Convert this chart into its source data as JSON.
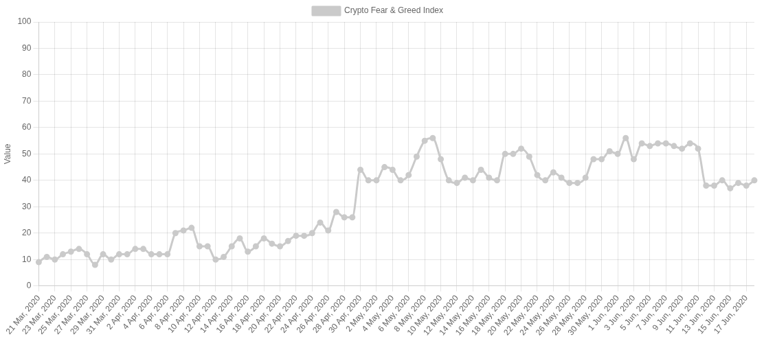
{
  "chart_data": {
    "type": "line",
    "ylabel": "Value",
    "categories": [
      "21 Mar, 2020",
      null,
      "23 Mar, 2020",
      null,
      "25 Mar, 2020",
      null,
      "27 Mar, 2020",
      null,
      "29 Mar, 2020",
      null,
      "31 Mar, 2020",
      null,
      "2 Apr, 2020",
      null,
      "4 Apr, 2020",
      null,
      "6 Apr, 2020",
      null,
      "8 Apr, 2020",
      null,
      "10 Apr, 2020",
      null,
      "12 Apr, 2020",
      null,
      "14 Apr, 2020",
      null,
      "16 Apr, 2020",
      null,
      "18 Apr, 2020",
      null,
      "20 Apr, 2020",
      null,
      "22 Apr, 2020",
      null,
      "24 Apr, 2020",
      null,
      "26 Apr, 2020",
      null,
      "28 Apr, 2020",
      null,
      "30 Apr, 2020",
      null,
      "2 May, 2020",
      null,
      "4 May, 2020",
      null,
      "6 May, 2020",
      null,
      "8 May, 2020",
      null,
      "10 May, 2020",
      null,
      "12 May, 2020",
      null,
      "14 May, 2020",
      null,
      "16 May, 2020",
      null,
      "18 May, 2020",
      null,
      "20 May, 2020",
      null,
      "22 May, 2020",
      null,
      "24 May, 2020",
      null,
      "26 May, 2020",
      null,
      "28 May, 2020",
      null,
      "30 May, 2020",
      null,
      "1 Jun, 2020",
      null,
      "3 Jun, 2020",
      null,
      "5 Jun, 2020",
      null,
      "7 Jun, 2020",
      null,
      "9 Jun, 2020",
      null,
      "11 Jun, 2020",
      null,
      "13 Jun, 2020",
      null,
      "15 Jun, 2020",
      null,
      "17 Jun, 2020",
      null
    ],
    "series": [
      {
        "name": "Crypto Fear & Greed Index",
        "color": "#cacaca",
        "values": [
          9,
          11,
          10,
          12,
          13,
          14,
          12,
          8,
          12,
          10,
          12,
          12,
          14,
          14,
          12,
          12,
          12,
          20,
          21,
          22,
          15,
          15,
          10,
          11,
          15,
          18,
          13,
          15,
          18,
          16,
          15,
          17,
          19,
          19,
          20,
          24,
          21,
          28,
          26,
          26,
          44,
          40,
          40,
          45,
          44,
          40,
          42,
          49,
          55,
          56,
          48,
          40,
          39,
          41,
          40,
          44,
          41,
          40,
          50,
          50,
          52,
          49,
          42,
          40,
          43,
          41,
          39,
          39,
          41,
          48,
          48,
          51,
          50,
          56,
          48,
          54,
          53,
          54,
          54,
          53,
          52,
          54,
          52,
          38,
          38,
          40,
          37,
          39,
          38,
          40
        ]
      }
    ],
    "ylim": [
      0,
      100
    ],
    "yticks": [
      0,
      10,
      20,
      30,
      40,
      50,
      60,
      70,
      80,
      90,
      100
    ],
    "grid": true,
    "legend": "top",
    "marker": "circle",
    "line_style": "solid"
  }
}
